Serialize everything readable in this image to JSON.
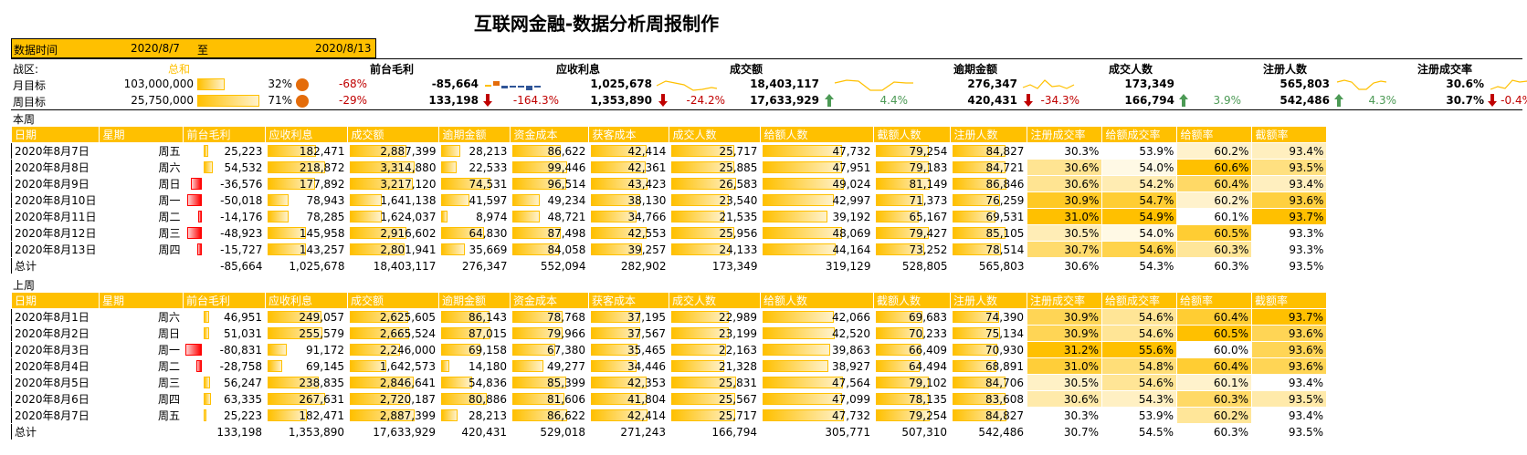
{
  "title": "互联网金融-数据分析周报制作",
  "header": {
    "label": "数据时间",
    "start": "2020/8/7",
    "to": "至",
    "end": "2020/8/13"
  },
  "kpi": {
    "region_label": "战区:",
    "total_label": "总和",
    "month_label": "月目标",
    "week_label": "周目标",
    "month_target": "103,000,000",
    "month_pct": "32%",
    "month_change": "-68%",
    "week_target": "25,750,000",
    "week_pct": "71%",
    "week_change": "-29%",
    "metrics": [
      {
        "name": "前台毛利",
        "value": "-85,664",
        "prev": "133,198",
        "change": "-164.3%",
        "dir": "down"
      },
      {
        "name": "应收利息",
        "value": "1,025,678",
        "prev": "1,353,890",
        "change": "-24.2%",
        "dir": "down"
      },
      {
        "name": "成交额",
        "value": "18,403,117",
        "prev": "17,633,929",
        "change": "4.4%",
        "dir": "up"
      },
      {
        "name": "逾期金额",
        "value": "276,347",
        "prev": "420,431",
        "change": "-34.3%",
        "dir": "down"
      },
      {
        "name": "成交人数",
        "value": "173,349",
        "prev": "166,794",
        "change": "3.9%",
        "dir": "up"
      },
      {
        "name": "注册人数",
        "value": "565,803",
        "prev": "542,486",
        "change": "4.3%",
        "dir": "up"
      },
      {
        "name": "注册成交率",
        "value": "30.6%",
        "prev": "30.7%",
        "change": "-0.4%",
        "dir": "down"
      }
    ]
  },
  "columns": [
    "日期",
    "星期",
    "前台毛利",
    "应收利息",
    "成交额",
    "逾期金额",
    "资金成本",
    "获客成本",
    "成交人数",
    "给额人数",
    "截额人数",
    "注册人数",
    "注册成交率",
    "给额成交率",
    "给额率",
    "截额率"
  ],
  "this_week": {
    "label": "本周",
    "rows": [
      [
        "2020年8月7日",
        "周五",
        "25,223",
        "182,471",
        "2,887,399",
        "28,213",
        "86,622",
        "42,414",
        "25,717",
        "47,732",
        "79,254",
        "84,827",
        "30.3%",
        "53.9%",
        "60.2%",
        "93.4%"
      ],
      [
        "2020年8月8日",
        "周六",
        "54,532",
        "218,872",
        "3,314,880",
        "22,533",
        "99,446",
        "42,361",
        "25,885",
        "47,951",
        "79,183",
        "84,721",
        "30.6%",
        "54.0%",
        "60.6%",
        "93.5%"
      ],
      [
        "2020年8月9日",
        "周日",
        "-36,576",
        "177,892",
        "3,217,120",
        "74,531",
        "96,514",
        "43,423",
        "26,583",
        "49,024",
        "81,149",
        "86,846",
        "30.6%",
        "54.2%",
        "60.4%",
        "93.4%"
      ],
      [
        "2020年8月10日",
        "周一",
        "-50,018",
        "78,943",
        "1,641,138",
        "41,597",
        "49,234",
        "38,130",
        "23,540",
        "42,997",
        "71,373",
        "76,259",
        "30.9%",
        "54.7%",
        "60.2%",
        "93.6%"
      ],
      [
        "2020年8月11日",
        "周二",
        "-14,176",
        "78,285",
        "1,624,037",
        "8,974",
        "48,721",
        "34,766",
        "21,535",
        "39,192",
        "65,167",
        "69,531",
        "31.0%",
        "54.9%",
        "60.1%",
        "93.7%"
      ],
      [
        "2020年8月12日",
        "周三",
        "-48,923",
        "145,958",
        "2,916,602",
        "64,830",
        "87,498",
        "42,553",
        "25,956",
        "48,069",
        "79,427",
        "85,105",
        "30.5%",
        "54.0%",
        "60.5%",
        "93.3%"
      ],
      [
        "2020年8月13日",
        "周四",
        "-15,727",
        "143,257",
        "2,801,941",
        "35,669",
        "84,058",
        "39,257",
        "24,133",
        "44,164",
        "73,252",
        "78,514",
        "30.7%",
        "54.6%",
        "60.3%",
        "93.3%"
      ]
    ],
    "total": [
      "总计",
      "",
      "-85,664",
      "1,025,678",
      "18,403,117",
      "276,347",
      "552,094",
      "282,902",
      "173,349",
      "319,129",
      "528,805",
      "565,803",
      "30.6%",
      "54.3%",
      "60.3%",
      "93.5%"
    ]
  },
  "last_week": {
    "label": "上周",
    "rows": [
      [
        "2020年8月1日",
        "周六",
        "46,951",
        "249,057",
        "2,625,605",
        "86,143",
        "78,768",
        "37,195",
        "22,989",
        "42,066",
        "69,683",
        "74,390",
        "30.9%",
        "54.6%",
        "60.4%",
        "93.7%"
      ],
      [
        "2020年8月2日",
        "周日",
        "51,031",
        "255,579",
        "2,665,524",
        "87,015",
        "79,966",
        "37,567",
        "23,199",
        "42,520",
        "70,233",
        "75,134",
        "30.9%",
        "54.6%",
        "60.5%",
        "93.6%"
      ],
      [
        "2020年8月3日",
        "周一",
        "-80,831",
        "91,172",
        "2,246,000",
        "69,158",
        "67,380",
        "35,465",
        "22,163",
        "39,863",
        "66,409",
        "70,930",
        "31.2%",
        "55.6%",
        "60.0%",
        "93.6%"
      ],
      [
        "2020年8月4日",
        "周二",
        "-28,758",
        "69,145",
        "1,642,573",
        "14,180",
        "49,277",
        "34,446",
        "21,328",
        "38,927",
        "64,494",
        "68,891",
        "31.0%",
        "54.8%",
        "60.4%",
        "93.6%"
      ],
      [
        "2020年8月5日",
        "周三",
        "56,247",
        "238,835",
        "2,846,641",
        "54,836",
        "85,399",
        "42,353",
        "25,831",
        "47,564",
        "79,102",
        "84,706",
        "30.5%",
        "54.6%",
        "60.1%",
        "93.4%"
      ],
      [
        "2020年8月6日",
        "周四",
        "63,335",
        "267,631",
        "2,720,187",
        "80,886",
        "81,606",
        "41,804",
        "25,567",
        "47,099",
        "78,135",
        "83,608",
        "30.6%",
        "54.3%",
        "60.3%",
        "93.5%"
      ],
      [
        "2020年8月7日",
        "周五",
        "25,223",
        "182,471",
        "2,887,399",
        "28,213",
        "86,622",
        "42,414",
        "25,717",
        "47,732",
        "79,254",
        "84,827",
        "30.3%",
        "53.9%",
        "60.2%",
        "93.4%"
      ]
    ],
    "total": [
      "总计",
      "",
      "133,198",
      "1,353,890",
      "17,633,929",
      "420,431",
      "529,018",
      "271,243",
      "166,794",
      "305,771",
      "507,310",
      "542,486",
      "30.7%",
      "54.5%",
      "60.3%",
      "93.5%"
    ]
  },
  "colors": {
    "accent": "#FFC000",
    "negative": "#FF0000",
    "up": "#4C9A55",
    "down": "#C00000"
  }
}
